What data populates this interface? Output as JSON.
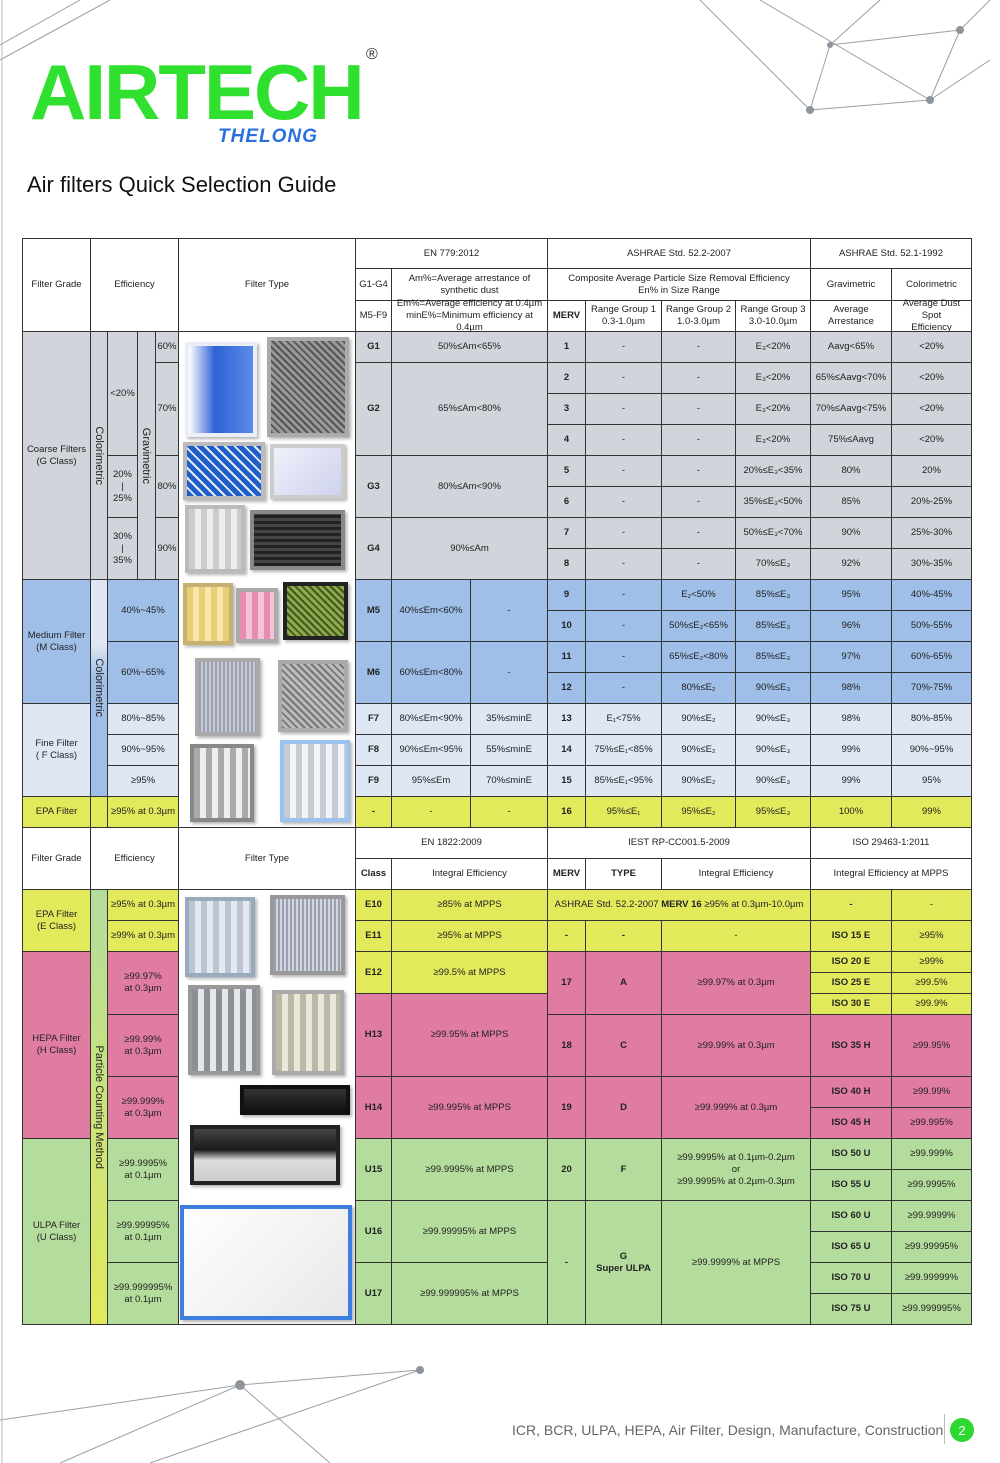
{
  "brand": {
    "logo": "AIRTECH",
    "sub_logo": "THELONG",
    "registered": "®",
    "logo_color": "#2fe02f",
    "sub_color": "#2a6fe0"
  },
  "title": "Air filters Quick Selection Guide",
  "footer": {
    "keywords": "ICR, BCR, ULPA, HEPA, Air Filter, Design, Manufacture, Construction",
    "page": "2"
  },
  "colors": {
    "coarse": "#d2d4db",
    "medium": "#9fbfe8",
    "fine": "#dfe7f4",
    "epa": "#e2ea5c",
    "hepa": "#e07ca2",
    "ulpa": "#b4dc9c",
    "header": "#ffffff"
  },
  "top": {
    "h": {
      "filter_grade": "Filter Grade",
      "efficiency": "Efficiency",
      "filter_type": "Filter Type",
      "en779": "EN 779:2012",
      "ashrae522": "ASHRAE Std. 52.2-2007",
      "ashrae521": "ASHRAE Std. 52.1-1992",
      "g1g4": "G1-G4",
      "am_def": "Am%=Average arrestance of\nsynthetic dust",
      "m5f9": "M5-F9",
      "em_def": "Em%=Average efficiency at 0.4µm\nminE%=Minimum efficiency at 0.4µm",
      "composite": "Composite Average Particle Size Removal Efficiency\nEn% in Size Range",
      "gravimetric": "Gravimetric",
      "colorimetric": "Colorimetric",
      "merv": "MERV",
      "rg1": "Range Group 1\n0.3-1.0µm",
      "rg2": "Range Group 2\n1.0-3.0µm",
      "rg3": "Range Group 3\n3.0-10.0µm",
      "avg_arrestance": "Average\nArrestance",
      "dust_spot": "Average Dust Spot\nEfficiency"
    },
    "grades": {
      "coarse": "Coarse Filters\n(G Class)",
      "medium": "Medium Filter\n(M Class)",
      "fine": "Fine Filter\n( F Class)",
      "epa": "EPA Filter"
    },
    "vertical": {
      "colorimetric": "Colorimetric",
      "gravimetric": "Gravimetric"
    },
    "coarse_eff": [
      "<20%",
      "20%\n|\n25%",
      "30%\n|\n35%"
    ],
    "coarse_grav": [
      "60%",
      "70%",
      "80%",
      "90%"
    ],
    "medium_eff": [
      "40%~45%",
      "60%~65%"
    ],
    "fine_eff": [
      "80%~85%",
      "90%~95%",
      "≥95%"
    ],
    "epa_eff": "≥95% at 0.3µm",
    "en779": [
      {
        "code": "G1",
        "am": "50%≤Am<65%"
      },
      {
        "code": "G2",
        "am": "65%≤Am<80%"
      },
      {
        "code": "G3",
        "am": "80%≤Am<90%"
      },
      {
        "code": "G4",
        "am": "90%≤Am"
      },
      {
        "code": "M5",
        "em": "40%≤Em<60%",
        "mine": "-"
      },
      {
        "code": "M6",
        "em": "60%≤Em<80%",
        "mine": "-"
      },
      {
        "code": "F7",
        "em": "80%≤Em<90%",
        "mine": "35%≤minE"
      },
      {
        "code": "F8",
        "em": "90%≤Em<95%",
        "mine": "55%≤minE"
      },
      {
        "code": "F9",
        "em": "95%≤Em",
        "mine": "70%≤minE"
      },
      {
        "code": "-",
        "em": "-",
        "mine": "-"
      }
    ],
    "ashrae": [
      [
        "1",
        "-",
        "-",
        "E₃<20%",
        "Aavg<65%",
        "<20%"
      ],
      [
        "2",
        "-",
        "-",
        "E₃<20%",
        "65%≤Aavg<70%",
        "<20%"
      ],
      [
        "3",
        "-",
        "-",
        "E₃<20%",
        "70%≤Aavg<75%",
        "<20%"
      ],
      [
        "4",
        "-",
        "-",
        "E₃<20%",
        "75%≤Aavg",
        "<20%"
      ],
      [
        "5",
        "-",
        "-",
        "20%≤E₃<35%",
        "80%",
        "20%"
      ],
      [
        "6",
        "-",
        "-",
        "35%≤E₃<50%",
        "85%",
        "20%-25%"
      ],
      [
        "7",
        "-",
        "-",
        "50%≤E₃<70%",
        "90%",
        "25%-30%"
      ],
      [
        "8",
        "-",
        "-",
        "70%≤E₃",
        "92%",
        "30%-35%"
      ],
      [
        "9",
        "-",
        "E₂<50%",
        "85%≤E₃",
        "95%",
        "40%-45%"
      ],
      [
        "10",
        "-",
        "50%≤E₂<65%",
        "85%≤E₃",
        "96%",
        "50%-55%"
      ],
      [
        "11",
        "-",
        "65%≤E₂<80%",
        "85%≤E₃",
        "97%",
        "60%-65%"
      ],
      [
        "12",
        "-",
        "80%≤E₂",
        "90%≤E₃",
        "98%",
        "70%-75%"
      ],
      [
        "13",
        "E₁<75%",
        "90%≤E₂",
        "90%≤E₃",
        "98%",
        "80%-85%"
      ],
      [
        "14",
        "75%≤E₁<85%",
        "90%≤E₂",
        "90%≤E₃",
        "99%",
        "90%~95%"
      ],
      [
        "15",
        "85%≤E₁<95%",
        "90%≤E₂",
        "90%≤E₃",
        "99%",
        "95%"
      ],
      [
        "16",
        "95%≤E₁",
        "95%≤E₂",
        "95%≤E₃",
        "100%",
        "99%"
      ]
    ]
  },
  "bottom": {
    "h": {
      "filter_grade": "Filter Grade",
      "efficiency": "Efficiency",
      "filter_type": "Filter Type",
      "en1822": "EN 1822:2009",
      "iest": "IEST RP-CC001.5-2009",
      "iso": "ISO 29463-1:2011",
      "class": "Class",
      "integral": "Integral Efficiency",
      "merv": "MERV",
      "type": "TYPE",
      "integral2": "Integral Efficiency",
      "iso_integral": "Integral Efficiency at MPPS"
    },
    "grades": {
      "epa": "EPA Filter\n(E Class)",
      "hepa": "HEPA Filter\n(H Class)",
      "ulpa": "ULPA Filter\n(U Class)"
    },
    "vertical": "Particle Counting Method",
    "eff": [
      "≥95% at 0.3µm",
      "≥99% at 0.3µm",
      "≥99.97%\nat 0.3µm",
      "≥99.99%\nat 0.3µm",
      "≥99.999%\nat 0.3µm",
      "≥99.9995%\nat 0.1µm",
      "≥99.99995%\nat 0.1µm",
      "≥99.999995%\nat 0.1µm"
    ],
    "en1822": [
      {
        "class": "E10",
        "eff": "≥85% at MPPS"
      },
      {
        "class": "E11",
        "eff": "≥95% at MPPS"
      },
      {
        "class": "E12",
        "eff": "≥99.5% at MPPS"
      },
      {
        "class": "H13",
        "eff": "≥99.95% at MPPS"
      },
      {
        "class": "H14",
        "eff": "≥99.995% at MPPS"
      },
      {
        "class": "U15",
        "eff": "≥99.9995% at MPPS"
      },
      {
        "class": "U16",
        "eff": "≥99.99995% at MPPS"
      },
      {
        "class": "U17",
        "eff": "≥99.999995% at MPPS"
      }
    ],
    "e10_note_pre": "ASHRAE Std. 52.2-2007 ",
    "e10_note_bold": "MERV 16",
    "e10_note_post": " ≥95% at 0.3µm-10.0µm",
    "iest": [
      {
        "merv": "-",
        "type": "-",
        "eff": "-"
      },
      {
        "merv": "17",
        "type": "A",
        "eff": "≥99.97% at 0.3µm"
      },
      {
        "merv": "18",
        "type": "C",
        "eff": "≥99.99% at 0.3µm"
      },
      {
        "merv": "19",
        "type": "D",
        "eff": "≥99.999% at 0.3µm"
      },
      {
        "merv": "20",
        "type": "F",
        "eff": "≥99.9995% at 0.1µm-0.2µm\nor\n≥99.9995% at 0.2µm-0.3µm"
      },
      {
        "merv": "-",
        "type": "G\nSuper ULPA",
        "eff": "≥99.9999% at MPPS"
      }
    ],
    "iso": [
      {
        "class": "-",
        "eff": "-"
      },
      {
        "class": "ISO 15 E",
        "eff": "≥95%"
      },
      {
        "class": "ISO 20 E",
        "eff": "≥99%"
      },
      {
        "class": "ISO 25 E",
        "eff": "≥99.5%"
      },
      {
        "class": "ISO 30 E",
        "eff": "≥99.9%"
      },
      {
        "class": "ISO 35 H",
        "eff": "≥99.95%"
      },
      {
        "class": "ISO 40 H",
        "eff": "≥99.99%"
      },
      {
        "class": "ISO 45 H",
        "eff": "≥99.995%"
      },
      {
        "class": "ISO 50 U",
        "eff": "≥99.999%"
      },
      {
        "class": "ISO 55 U",
        "eff": "≥99.9995%"
      },
      {
        "class": "ISO 60 U",
        "eff": "≥99.9999%"
      },
      {
        "class": "ISO 65 U",
        "eff": "≥99.99995%"
      },
      {
        "class": "ISO 70 U",
        "eff": "≥99.99999%"
      },
      {
        "class": "ISO 75 U",
        "eff": "≥99.999995%"
      }
    ]
  }
}
